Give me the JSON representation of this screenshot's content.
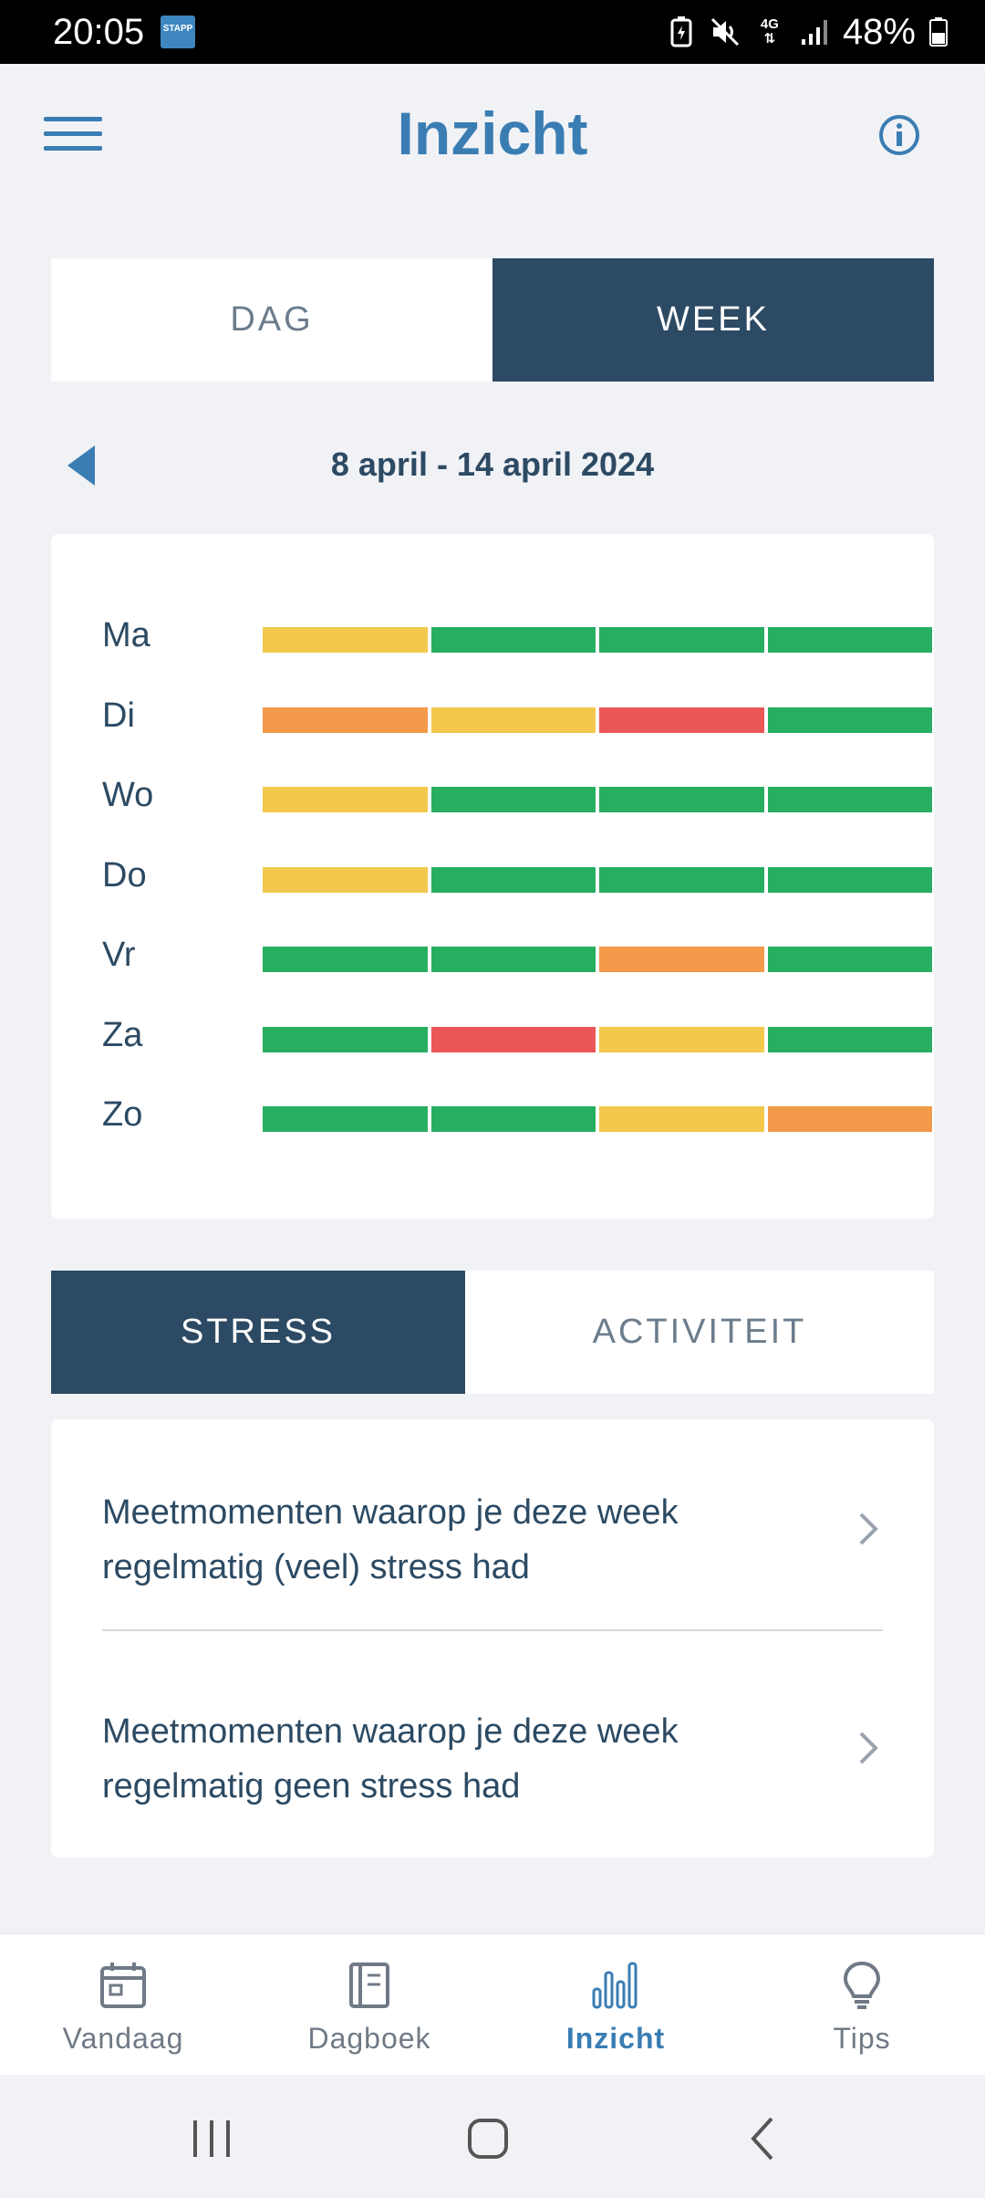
{
  "status_bar": {
    "time": "20:05",
    "app_badge": "STAPP",
    "network": "4G",
    "battery": "48%"
  },
  "header": {
    "title": "Inzicht",
    "menu_icon": "hamburger-menu-icon",
    "info_icon": "info-icon"
  },
  "period_tabs": [
    {
      "label": "DAG",
      "active": false
    },
    {
      "label": "WEEK",
      "active": true
    }
  ],
  "date_range": "8 april - 14 april 2024",
  "colors": {
    "green": "#27ae60",
    "yellow": "#f2c94c",
    "orange": "#f2994a",
    "red": "#eb5757",
    "accent": "#3a7db3",
    "dark": "#2c4a63"
  },
  "week_grid": [
    {
      "day": "Ma",
      "levels": [
        "yellow",
        "green",
        "green",
        "green"
      ]
    },
    {
      "day": "Di",
      "levels": [
        "orange",
        "yellow",
        "red",
        "green"
      ]
    },
    {
      "day": "Wo",
      "levels": [
        "yellow",
        "green",
        "green",
        "green"
      ]
    },
    {
      "day": "Do",
      "levels": [
        "yellow",
        "green",
        "green",
        "green"
      ]
    },
    {
      "day": "Vr",
      "levels": [
        "green",
        "green",
        "orange",
        "green"
      ]
    },
    {
      "day": "Za",
      "levels": [
        "green",
        "red",
        "yellow",
        "green"
      ]
    },
    {
      "day": "Zo",
      "levels": [
        "green",
        "green",
        "yellow",
        "orange"
      ]
    }
  ],
  "type_tabs": [
    {
      "label": "STRESS",
      "active": true
    },
    {
      "label": "ACTIVITEIT",
      "active": false
    }
  ],
  "list": [
    {
      "text": "Meetmomenten waarop je deze week regelmatig (veel) stress had"
    },
    {
      "text": "Meetmomenten waarop je deze week regelmatig geen stress had"
    }
  ],
  "bottom_nav": [
    {
      "label": "Vandaag",
      "icon": "calendar-icon",
      "active": false
    },
    {
      "label": "Dagboek",
      "icon": "notebook-icon",
      "active": false
    },
    {
      "label": "Inzicht",
      "icon": "bar-chart-icon",
      "active": true
    },
    {
      "label": "Tips",
      "icon": "lightbulb-icon",
      "active": false
    }
  ]
}
